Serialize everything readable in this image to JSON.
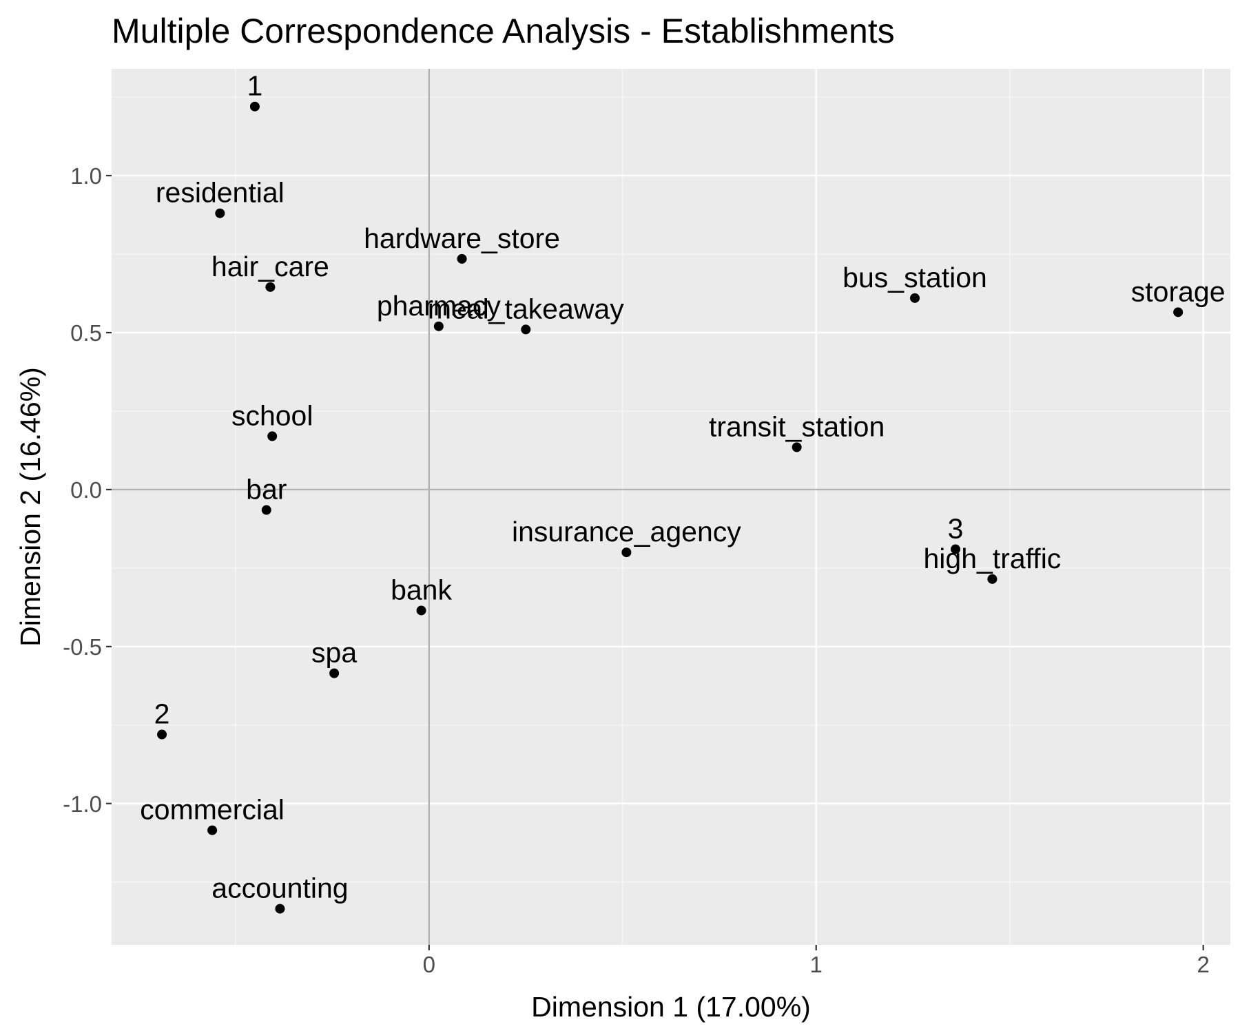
{
  "chart_data": {
    "type": "scatter",
    "title": "Multiple Correspondence Analysis - Establishments",
    "xlabel": "Dimension 1 (17.00%)",
    "ylabel": "Dimension 2 (16.46%)",
    "xlim": [
      -0.82,
      2.07
    ],
    "ylim": [
      -1.45,
      1.34
    ],
    "x_ticks": [
      0,
      1,
      2
    ],
    "x_tick_labels": [
      "0",
      "1",
      "2"
    ],
    "y_ticks": [
      1.0,
      0.5,
      0.0,
      -0.5,
      -1.0
    ],
    "y_tick_labels": [
      "1.0",
      "0.5",
      "0.0",
      "-0.5",
      "-1.0"
    ],
    "grid": true,
    "reference_lines": {
      "x": 0,
      "y": 0
    },
    "colors": {
      "panel_background": "#ebebeb",
      "grid_major": "#ffffff",
      "grid_minor": "#f7f7f7",
      "reference_line": "#b3b3b3",
      "point": "#000000"
    },
    "points": [
      {
        "label": "1",
        "x": -0.45,
        "y": 1.22
      },
      {
        "label": "residential",
        "x": -0.54,
        "y": 0.88
      },
      {
        "label": "hardware_store",
        "x": 0.085,
        "y": 0.735
      },
      {
        "label": "hair_care",
        "x": -0.41,
        "y": 0.645
      },
      {
        "label": "pharmacy",
        "x": 0.025,
        "y": 0.52
      },
      {
        "label": "meal_takeaway",
        "x": 0.25,
        "y": 0.51
      },
      {
        "label": "bus_station",
        "x": 1.255,
        "y": 0.61
      },
      {
        "label": "storage",
        "x": 1.935,
        "y": 0.565
      },
      {
        "label": "school",
        "x": -0.405,
        "y": 0.17
      },
      {
        "label": "transit_station",
        "x": 0.95,
        "y": 0.135
      },
      {
        "label": "bar",
        "x": -0.42,
        "y": -0.065
      },
      {
        "label": "insurance_agency",
        "x": 0.51,
        "y": -0.2
      },
      {
        "label": "3",
        "x": 1.36,
        "y": -0.19
      },
      {
        "label": "high_traffic",
        "x": 1.455,
        "y": -0.285
      },
      {
        "label": "bank",
        "x": -0.02,
        "y": -0.385
      },
      {
        "label": "spa",
        "x": -0.245,
        "y": -0.585
      },
      {
        "label": "2",
        "x": -0.69,
        "y": -0.78
      },
      {
        "label": "commercial",
        "x": -0.56,
        "y": -1.085
      },
      {
        "label": "accounting",
        "x": -0.385,
        "y": -1.335
      }
    ]
  }
}
